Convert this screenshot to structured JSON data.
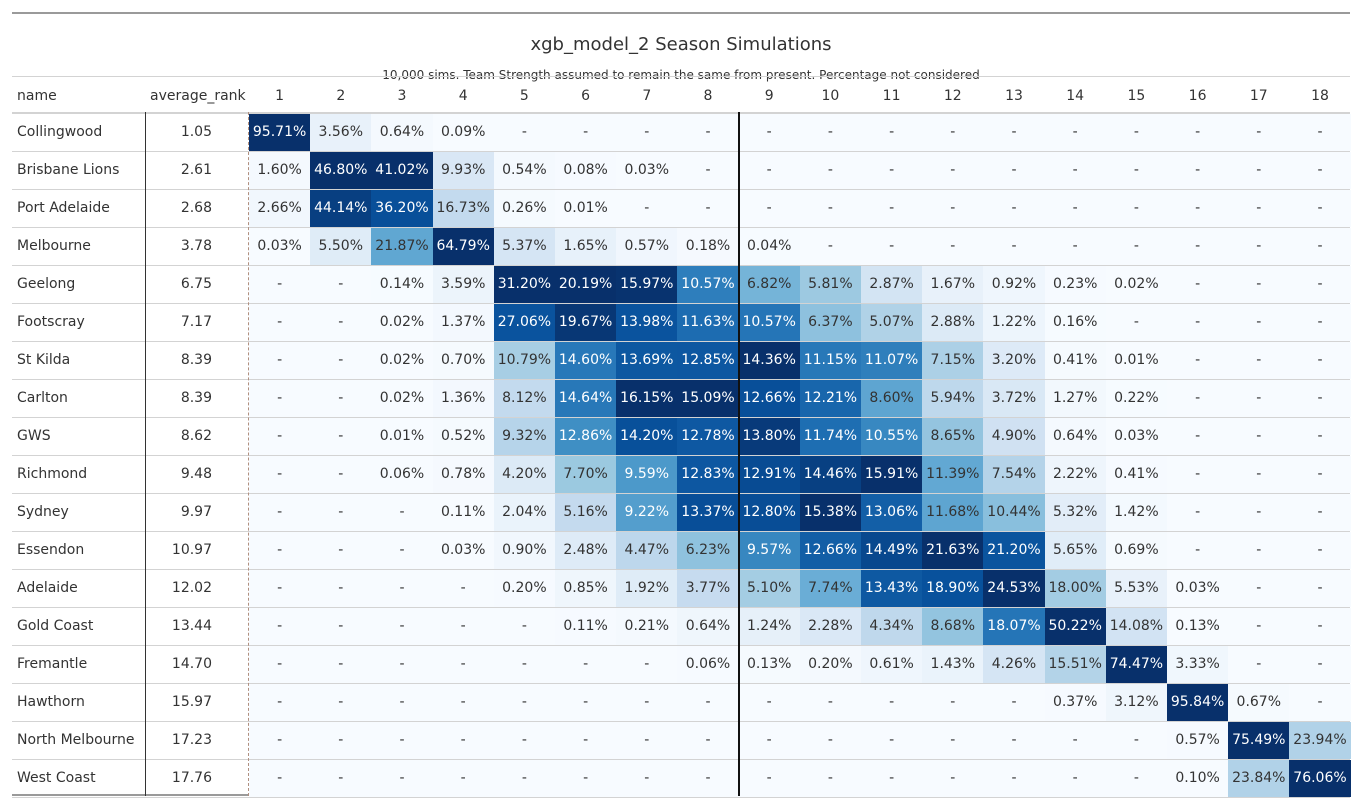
{
  "title": "xgb_model_2 Season Simulations",
  "subtitle": "10,000 sims. Team Strength assumed to remain the same from present. Percentage not considered",
  "columns": {
    "name": "name",
    "average_rank": "average_rank",
    "positions": [
      "1",
      "2",
      "3",
      "4",
      "5",
      "6",
      "7",
      "8",
      "9",
      "10",
      "11",
      "12",
      "13",
      "14",
      "15",
      "16",
      "17",
      "18"
    ]
  },
  "chart_data": {
    "type": "table",
    "rows": [
      {
        "name": "Collingwood",
        "average_rank": "1.05",
        "cells": [
          "95.71%",
          "3.56%",
          "0.64%",
          "0.09%",
          "-",
          "-",
          "-",
          "-",
          "-",
          "-",
          "-",
          "-",
          "-",
          "-",
          "-",
          "-",
          "-",
          "-"
        ]
      },
      {
        "name": "Brisbane Lions",
        "average_rank": "2.61",
        "cells": [
          "1.60%",
          "46.80%",
          "41.02%",
          "9.93%",
          "0.54%",
          "0.08%",
          "0.03%",
          "-",
          "-",
          "-",
          "-",
          "-",
          "-",
          "-",
          "-",
          "-",
          "-",
          "-"
        ]
      },
      {
        "name": "Port Adelaide",
        "average_rank": "2.68",
        "cells": [
          "2.66%",
          "44.14%",
          "36.20%",
          "16.73%",
          "0.26%",
          "0.01%",
          "-",
          "-",
          "-",
          "-",
          "-",
          "-",
          "-",
          "-",
          "-",
          "-",
          "-",
          "-"
        ]
      },
      {
        "name": "Melbourne",
        "average_rank": "3.78",
        "cells": [
          "0.03%",
          "5.50%",
          "21.87%",
          "64.79%",
          "5.37%",
          "1.65%",
          "0.57%",
          "0.18%",
          "0.04%",
          "-",
          "-",
          "-",
          "-",
          "-",
          "-",
          "-",
          "-",
          "-"
        ]
      },
      {
        "name": "Geelong",
        "average_rank": "6.75",
        "cells": [
          "-",
          "-",
          "0.14%",
          "3.59%",
          "31.20%",
          "20.19%",
          "15.97%",
          "10.57%",
          "6.82%",
          "5.81%",
          "2.87%",
          "1.67%",
          "0.92%",
          "0.23%",
          "0.02%",
          "-",
          "-",
          "-"
        ]
      },
      {
        "name": "Footscray",
        "average_rank": "7.17",
        "cells": [
          "-",
          "-",
          "0.02%",
          "1.37%",
          "27.06%",
          "19.67%",
          "13.98%",
          "11.63%",
          "10.57%",
          "6.37%",
          "5.07%",
          "2.88%",
          "1.22%",
          "0.16%",
          "-",
          "-",
          "-",
          "-"
        ]
      },
      {
        "name": "St Kilda",
        "average_rank": "8.39",
        "cells": [
          "-",
          "-",
          "0.02%",
          "0.70%",
          "10.79%",
          "14.60%",
          "13.69%",
          "12.85%",
          "14.36%",
          "11.15%",
          "11.07%",
          "7.15%",
          "3.20%",
          "0.41%",
          "0.01%",
          "-",
          "-",
          "-"
        ]
      },
      {
        "name": "Carlton",
        "average_rank": "8.39",
        "cells": [
          "-",
          "-",
          "0.02%",
          "1.36%",
          "8.12%",
          "14.64%",
          "16.15%",
          "15.09%",
          "12.66%",
          "12.21%",
          "8.60%",
          "5.94%",
          "3.72%",
          "1.27%",
          "0.22%",
          "-",
          "-",
          "-"
        ]
      },
      {
        "name": "GWS",
        "average_rank": "8.62",
        "cells": [
          "-",
          "-",
          "0.01%",
          "0.52%",
          "9.32%",
          "12.86%",
          "14.20%",
          "12.78%",
          "13.80%",
          "11.74%",
          "10.55%",
          "8.65%",
          "4.90%",
          "0.64%",
          "0.03%",
          "-",
          "-",
          "-"
        ]
      },
      {
        "name": "Richmond",
        "average_rank": "9.48",
        "cells": [
          "-",
          "-",
          "0.06%",
          "0.78%",
          "4.20%",
          "7.70%",
          "9.59%",
          "12.83%",
          "12.91%",
          "14.46%",
          "15.91%",
          "11.39%",
          "7.54%",
          "2.22%",
          "0.41%",
          "-",
          "-",
          "-"
        ]
      },
      {
        "name": "Sydney",
        "average_rank": "9.97",
        "cells": [
          "-",
          "-",
          "-",
          "0.11%",
          "2.04%",
          "5.16%",
          "9.22%",
          "13.37%",
          "12.80%",
          "15.38%",
          "13.06%",
          "11.68%",
          "10.44%",
          "5.32%",
          "1.42%",
          "-",
          "-",
          "-"
        ]
      },
      {
        "name": "Essendon",
        "average_rank": "10.97",
        "cells": [
          "-",
          "-",
          "-",
          "0.03%",
          "0.90%",
          "2.48%",
          "4.47%",
          "6.23%",
          "9.57%",
          "12.66%",
          "14.49%",
          "21.63%",
          "21.20%",
          "5.65%",
          "0.69%",
          "-",
          "-",
          "-"
        ]
      },
      {
        "name": "Adelaide",
        "average_rank": "12.02",
        "cells": [
          "-",
          "-",
          "-",
          "-",
          "0.20%",
          "0.85%",
          "1.92%",
          "3.77%",
          "5.10%",
          "7.74%",
          "13.43%",
          "18.90%",
          "24.53%",
          "18.00%",
          "5.53%",
          "0.03%",
          "-",
          "-"
        ]
      },
      {
        "name": "Gold Coast",
        "average_rank": "13.44",
        "cells": [
          "-",
          "-",
          "-",
          "-",
          "-",
          "0.11%",
          "0.21%",
          "0.64%",
          "1.24%",
          "2.28%",
          "4.34%",
          "8.68%",
          "18.07%",
          "50.22%",
          "14.08%",
          "0.13%",
          "-",
          "-"
        ]
      },
      {
        "name": "Fremantle",
        "average_rank": "14.70",
        "cells": [
          "-",
          "-",
          "-",
          "-",
          "-",
          "-",
          "-",
          "0.06%",
          "0.13%",
          "0.20%",
          "0.61%",
          "1.43%",
          "4.26%",
          "15.51%",
          "74.47%",
          "3.33%",
          "-",
          "-"
        ]
      },
      {
        "name": "Hawthorn",
        "average_rank": "15.97",
        "cells": [
          "-",
          "-",
          "-",
          "-",
          "-",
          "-",
          "-",
          "-",
          "-",
          "-",
          "-",
          "-",
          "-",
          "0.37%",
          "3.12%",
          "95.84%",
          "0.67%",
          "-"
        ]
      },
      {
        "name": "North Melbourne",
        "average_rank": "17.23",
        "cells": [
          "-",
          "-",
          "-",
          "-",
          "-",
          "-",
          "-",
          "-",
          "-",
          "-",
          "-",
          "-",
          "-",
          "-",
          "-",
          "0.57%",
          "75.49%",
          "23.94%"
        ]
      },
      {
        "name": "West Coast",
        "average_rank": "17.76",
        "cells": [
          "-",
          "-",
          "-",
          "-",
          "-",
          "-",
          "-",
          "-",
          "-",
          "-",
          "-",
          "-",
          "-",
          "-",
          "-",
          "0.10%",
          "23.84%",
          "76.06%"
        ]
      }
    ],
    "colormap": "Blues",
    "column_normalized": true
  }
}
